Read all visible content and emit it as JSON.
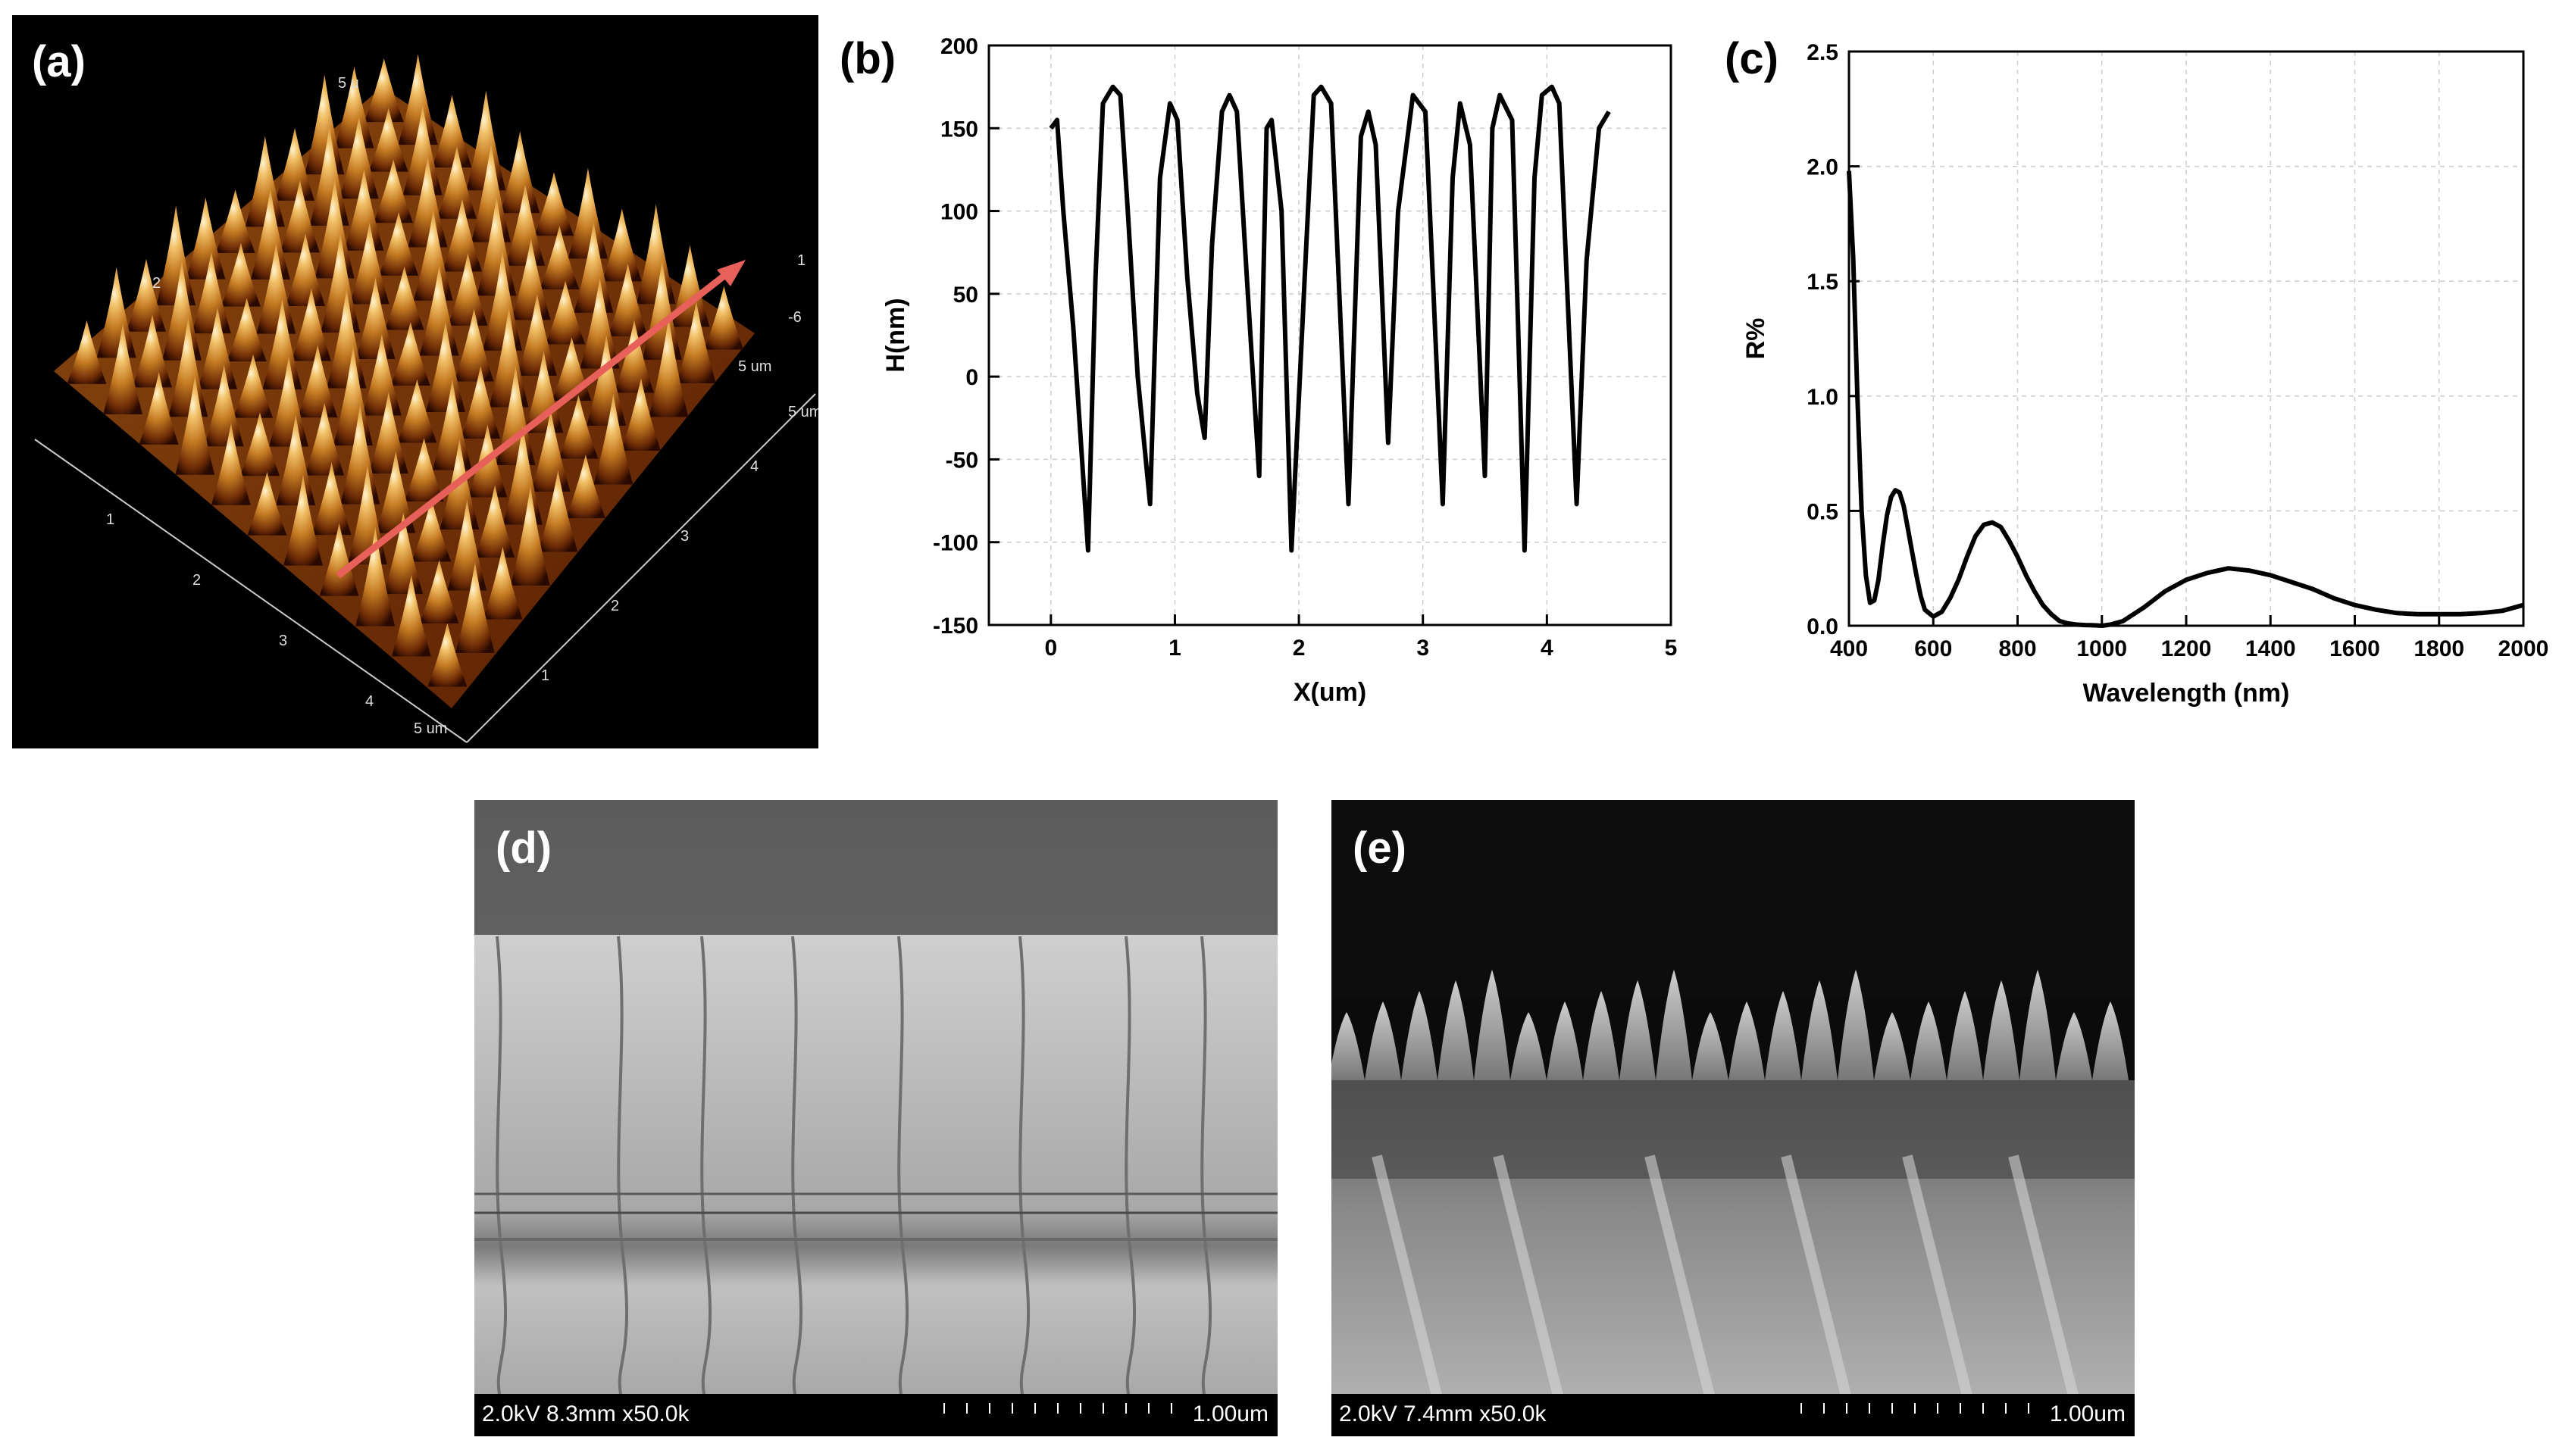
{
  "panels": {
    "a": {
      "label": "(a)",
      "axis_label_5um": "5 um",
      "axis_label_5um_side": "5 um",
      "axis_label_5um_right": "5 um",
      "corner_top": "5 u",
      "corner_right_top": "1",
      "corner_right_mid": "-6",
      "corner_left": "2"
    },
    "b": {
      "label": "(b)"
    },
    "c": {
      "label": "(c)"
    },
    "d": {
      "label": "(d)",
      "sem_info": "2.0kV 8.3mm x50.0k",
      "scale": "1.00um"
    },
    "e": {
      "label": "(e)",
      "sem_info": "2.0kV 7.4mm x50.0k",
      "scale": "1.00um"
    }
  },
  "afm_axes": {
    "front": [
      "1",
      "2",
      "3",
      "4"
    ],
    "right": [
      "1",
      "2",
      "3",
      "4"
    ]
  },
  "chart_data": [
    {
      "type": "line",
      "panel": "b",
      "title": "",
      "xlabel": "X(um)",
      "ylabel": "H(nm)",
      "xlim": [
        -0.5,
        5
      ],
      "ylim": [
        -150,
        200
      ],
      "xticks": [
        "0",
        "1",
        "2",
        "3",
        "4",
        "5"
      ],
      "yticks": [
        "-150",
        "-100",
        "-50",
        "0",
        "50",
        "100",
        "150",
        "200"
      ],
      "grid": true,
      "series": [
        {
          "x": [
            0.0,
            0.05,
            0.1,
            0.18,
            0.3,
            0.36,
            0.42,
            0.5,
            0.56,
            0.62,
            0.7,
            0.8,
            0.88,
            0.96,
            1.02,
            1.1,
            1.18,
            1.24,
            1.3,
            1.38,
            1.44,
            1.5,
            1.58,
            1.68,
            1.74,
            1.78,
            1.86,
            1.94,
            2.06,
            2.12,
            2.18,
            2.26,
            2.32,
            2.4,
            2.5,
            2.56,
            2.62,
            2.72,
            2.8,
            2.92,
            3.02,
            3.08,
            3.16,
            3.24,
            3.3,
            3.38,
            3.5,
            3.56,
            3.62,
            3.72,
            3.82,
            3.9,
            3.96,
            4.04,
            4.1,
            4.16,
            4.24,
            4.32,
            4.42,
            4.5
          ],
          "y": [
            150,
            155,
            100,
            30,
            -105,
            60,
            165,
            175,
            170,
            100,
            0,
            -77,
            120,
            165,
            155,
            60,
            -10,
            -37,
            80,
            160,
            170,
            160,
            60,
            -60,
            150,
            155,
            100,
            -105,
            80,
            170,
            175,
            165,
            60,
            -77,
            145,
            160,
            140,
            -40,
            100,
            170,
            160,
            60,
            -77,
            120,
            165,
            140,
            -60,
            150,
            170,
            155,
            -105,
            120,
            170,
            175,
            165,
            60,
            -77,
            70,
            150,
            160
          ]
        }
      ]
    },
    {
      "type": "line",
      "panel": "c",
      "title": "",
      "xlabel": "Wavelength (nm)",
      "ylabel": "R%",
      "xlim": [
        400,
        2000
      ],
      "ylim": [
        0,
        2.5
      ],
      "xticks": [
        "400",
        "600",
        "800",
        "1000",
        "1200",
        "1400",
        "1600",
        "1800",
        "2000"
      ],
      "yticks": [
        "0.0",
        "0.5",
        "1.0",
        "1.5",
        "2.0",
        "2.5"
      ],
      "grid": true,
      "series": [
        {
          "x": [
            400,
            410,
            420,
            430,
            440,
            450,
            460,
            470,
            480,
            490,
            500,
            510,
            520,
            530,
            540,
            550,
            560,
            570,
            580,
            600,
            620,
            640,
            660,
            680,
            700,
            720,
            740,
            760,
            780,
            800,
            820,
            840,
            860,
            880,
            900,
            920,
            940,
            960,
            980,
            1000,
            1020,
            1050,
            1100,
            1150,
            1200,
            1250,
            1300,
            1350,
            1400,
            1450,
            1500,
            1550,
            1600,
            1650,
            1700,
            1750,
            1800,
            1850,
            1900,
            1950,
            2000
          ],
          "y": [
            1.98,
            1.6,
            1.0,
            0.5,
            0.22,
            0.1,
            0.11,
            0.2,
            0.35,
            0.48,
            0.56,
            0.59,
            0.58,
            0.52,
            0.42,
            0.32,
            0.22,
            0.13,
            0.07,
            0.04,
            0.06,
            0.12,
            0.2,
            0.3,
            0.39,
            0.44,
            0.45,
            0.43,
            0.37,
            0.3,
            0.22,
            0.15,
            0.09,
            0.05,
            0.02,
            0.01,
            0.005,
            0.003,
            0.002,
            0.0,
            0.005,
            0.02,
            0.08,
            0.15,
            0.2,
            0.23,
            0.25,
            0.24,
            0.22,
            0.19,
            0.16,
            0.12,
            0.09,
            0.07,
            0.055,
            0.05,
            0.05,
            0.05,
            0.055,
            0.065,
            0.09
          ]
        }
      ]
    }
  ]
}
